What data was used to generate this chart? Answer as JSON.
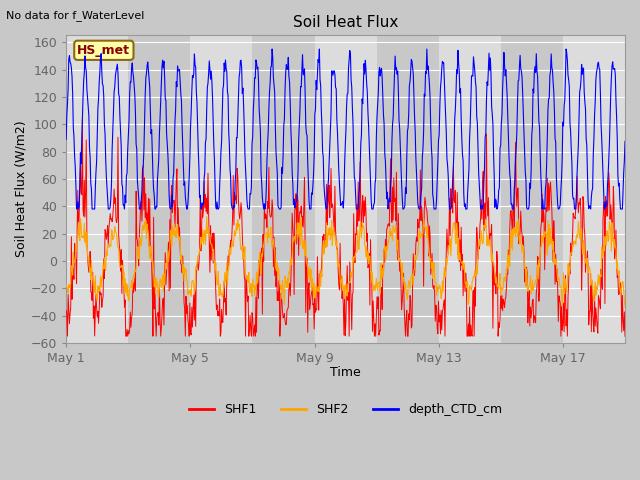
{
  "title": "Soil Heat Flux",
  "xlabel": "Time",
  "ylabel": "Soil Heat Flux (W/m2)",
  "top_left_text": "No data for f_WaterLevel",
  "station_label": "HS_met",
  "ylim": [
    -60,
    165
  ],
  "yticks": [
    -60,
    -40,
    -20,
    0,
    20,
    40,
    60,
    80,
    100,
    120,
    140,
    160
  ],
  "xtick_labels": [
    "May 1",
    "May 5",
    "May 9",
    "May 13",
    "May 17"
  ],
  "xtick_pos": [
    0,
    4,
    8,
    12,
    16
  ],
  "xlim": [
    0,
    18
  ],
  "legend_entries": [
    "SHF1",
    "SHF2",
    "depth_CTD_cm"
  ],
  "line_colors": {
    "SHF1": "#FF0000",
    "SHF2": "#FFA500",
    "depth_CTD_cm": "#0000FF"
  },
  "fig_bg": "#C8C8C8",
  "plot_bg": "#E8E8E8",
  "band_colors": [
    "#DCDCDC",
    "#C8C8C8"
  ],
  "grid_color": "#FFFFFF",
  "n_days": 18,
  "points_per_day": 48
}
